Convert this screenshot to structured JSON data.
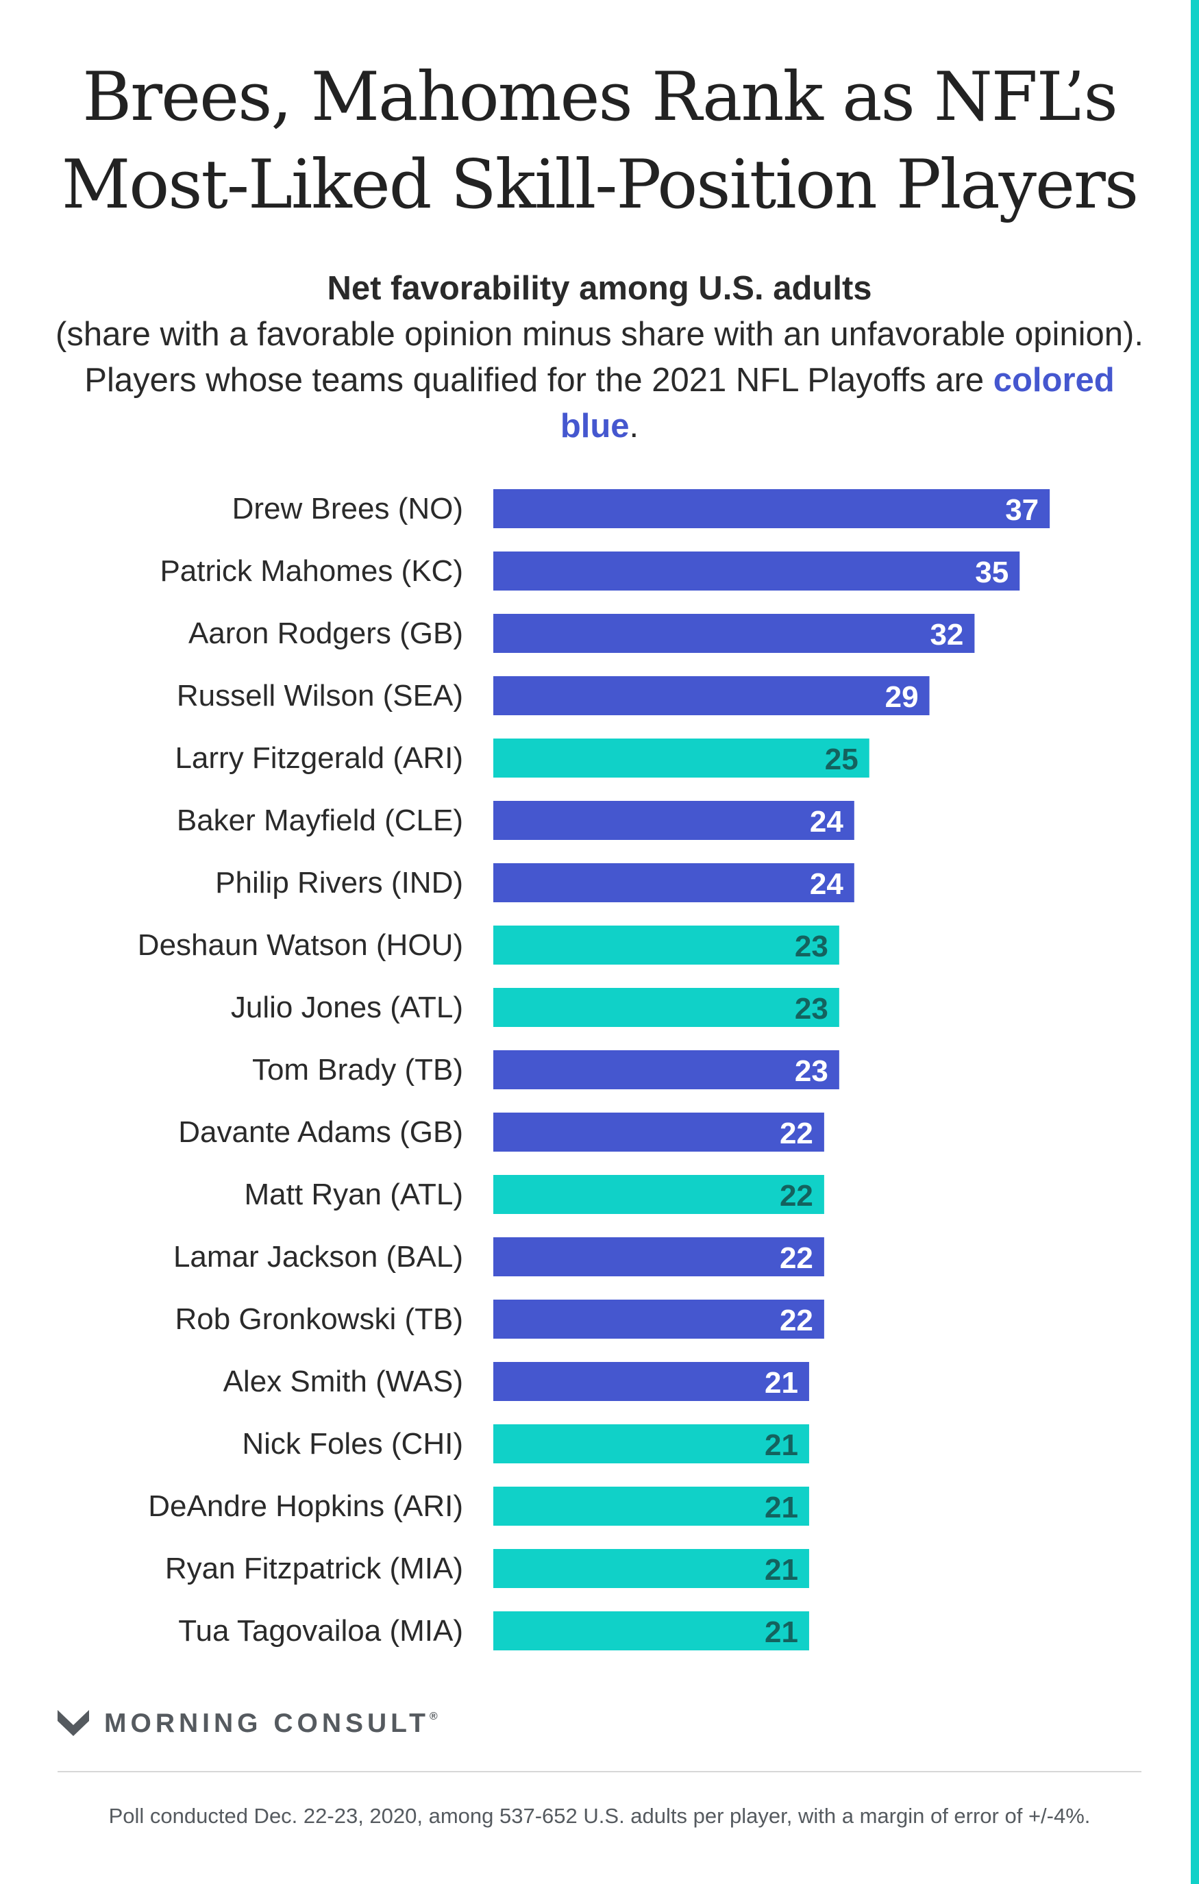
{
  "title_line1": "Brees, Mahomes Rank as NFL’s",
  "title_line2": "Most-Liked Skill-Position Players",
  "subtitle_bold": "Net favorability among U.S. adults",
  "subtitle_text": "(share with a favorable opinion minus share with an unfavorable opinion). Players whose teams qualified for the 2021 NFL Playoffs are ",
  "subtitle_highlight": "colored blue",
  "subtitle_end": ".",
  "colors": {
    "playoff": "#4557cf",
    "non_playoff": "#10d1c8",
    "label_on_playoff": "#ffffff",
    "label_on_non_playoff": "#14625e"
  },
  "chart_data": {
    "type": "bar",
    "orientation": "horizontal",
    "categories": [
      "Drew Brees (NO)",
      "Patrick Mahomes (KC)",
      "Aaron Rodgers (GB)",
      "Russell Wilson (SEA)",
      "Larry Fitzgerald (ARI)",
      "Baker Mayfield (CLE)",
      "Philip Rivers (IND)",
      "Deshaun Watson (HOU)",
      "Julio Jones (ATL)",
      "Tom Brady (TB)",
      "Davante Adams (GB)",
      "Matt Ryan (ATL)",
      "Lamar Jackson (BAL)",
      "Rob Gronkowski (TB)",
      "Alex Smith (WAS)",
      "Nick Foles (CHI)",
      "DeAndre Hopkins (ARI)",
      "Ryan Fitzpatrick (MIA)",
      "Tua Tagovailoa (MIA)"
    ],
    "values": [
      37,
      35,
      32,
      29,
      25,
      24,
      24,
      23,
      23,
      23,
      22,
      22,
      22,
      22,
      21,
      21,
      21,
      21,
      21
    ],
    "playoff_team": [
      true,
      true,
      true,
      true,
      false,
      true,
      true,
      false,
      false,
      true,
      true,
      false,
      true,
      true,
      true,
      false,
      false,
      false,
      false
    ],
    "xlim": [
      0,
      40
    ],
    "grid": false,
    "data_labels": true
  },
  "logo_text": "MORNING CONSULT",
  "logo_mark": "®",
  "logo_icon": "morning-consult-chevron-icon",
  "footnote": "Poll conducted Dec. 22-23, 2020, among 537-652 U.S. adults per player, with a margin of error of +/-4%."
}
